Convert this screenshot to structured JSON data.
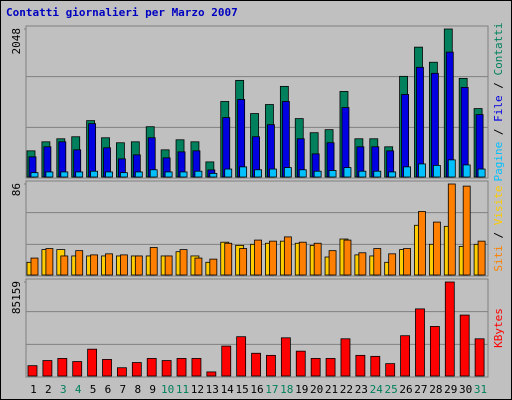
{
  "title": "Contatti giornalieri per Marzo 2007",
  "chart_data": [
    {
      "type": "bar",
      "ylim": [
        0,
        2048
      ],
      "yticks": [
        2048
      ],
      "series": [
        {
          "name": "Contatti",
          "color": "#00805c",
          "values": [
            362,
            487,
            529,
            557,
            780,
            543,
            474,
            487,
            696,
            376,
            515,
            487,
            209,
            1045,
            1337,
            878,
            1003,
            1254,
            808,
            613,
            655,
            1184,
            529,
            529,
            418,
            1393,
            1797,
            1588,
            2048,
            1365,
            947
          ]
        },
        {
          "name": "File",
          "color": "#0000e0",
          "values": [
            279,
            418,
            487,
            376,
            738,
            404,
            251,
            306,
            543,
            265,
            348,
            362,
            98,
            822,
            1073,
            557,
            724,
            1045,
            529,
            320,
            474,
            961,
            418,
            418,
            362,
            1142,
            1518,
            1435,
            1728,
            1240,
            864
          ]
        },
        {
          "name": "Pagine",
          "color": "#00c0ff",
          "values": [
            60,
            70,
            70,
            70,
            80,
            70,
            60,
            70,
            100,
            70,
            70,
            80,
            50,
            110,
            140,
            100,
            110,
            130,
            100,
            80,
            90,
            130,
            80,
            80,
            70,
            140,
            181,
            160,
            237,
            167,
            110
          ]
        }
      ]
    },
    {
      "type": "bar",
      "ylim": [
        0,
        86
      ],
      "yticks": [
        86
      ],
      "series": [
        {
          "name": "Visite",
          "color": "#ffcc00",
          "values": [
            12,
            24,
            24,
            18,
            18,
            18,
            18,
            18,
            18,
            18,
            22,
            18,
            12,
            31,
            28,
            29,
            30,
            32,
            30,
            28,
            17,
            34,
            19,
            18,
            12,
            24,
            47,
            29,
            46,
            27,
            29
          ]
        },
        {
          "name": "Siti",
          "color": "#ff8000",
          "values": [
            16,
            25,
            18,
            23,
            19,
            20,
            19,
            18,
            26,
            18,
            24,
            16,
            15,
            30,
            25,
            33,
            32,
            36,
            31,
            30,
            23,
            33,
            21,
            25,
            20,
            25,
            60,
            50,
            86,
            84,
            32
          ]
        }
      ]
    },
    {
      "type": "bar",
      "ylim": [
        0,
        85159
      ],
      "yticks": [
        85159
      ],
      "categories": [
        "1",
        "2",
        "3",
        "4",
        "5",
        "6",
        "7",
        "8",
        "9",
        "10",
        "11",
        "12",
        "13",
        "14",
        "15",
        "16",
        "17",
        "18",
        "19",
        "20",
        "21",
        "22",
        "23",
        "24",
        "25",
        "26",
        "27",
        "28",
        "29",
        "30",
        "31"
      ],
      "xtick_colors": [
        "#000000",
        "#000000",
        "#00805c",
        "#00805c",
        "#000000",
        "#000000",
        "#000000",
        "#000000",
        "#000000",
        "#00805c",
        "#00805c",
        "#000000",
        "#000000",
        "#000000",
        "#000000",
        "#000000",
        "#00805c",
        "#00805c",
        "#000000",
        "#000000",
        "#000000",
        "#000000",
        "#000000",
        "#00805c",
        "#00805c",
        "#000000",
        "#000000",
        "#000000",
        "#000000",
        "#000000",
        "#00805c"
      ],
      "series": [
        {
          "name": "KBytes",
          "color": "#ff0000",
          "values": [
            9360,
            14000,
            15900,
            13100,
            24300,
            15000,
            7500,
            12200,
            15900,
            14000,
            15900,
            15900,
            3700,
            27100,
            35600,
            20600,
            18700,
            34600,
            22500,
            15900,
            15900,
            33700,
            18700,
            17800,
            11200,
            36500,
            60800,
            44900,
            85159,
            55200,
            33700
          ]
        }
      ]
    }
  ]
}
